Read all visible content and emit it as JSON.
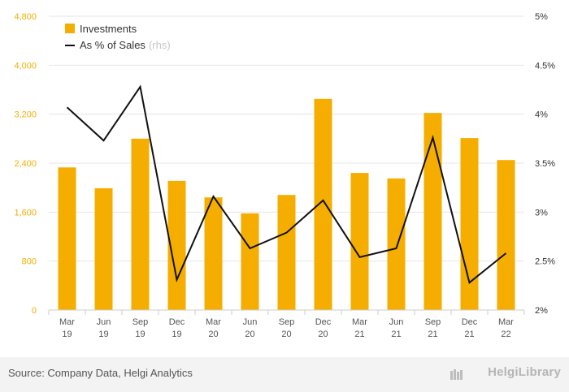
{
  "chart_data": {
    "type": "bar",
    "categories": [
      [
        "Mar",
        "19"
      ],
      [
        "Jun",
        "19"
      ],
      [
        "Sep",
        "19"
      ],
      [
        "Dec",
        "19"
      ],
      [
        "Mar",
        "20"
      ],
      [
        "Jun",
        "20"
      ],
      [
        "Sep",
        "20"
      ],
      [
        "Dec",
        "20"
      ],
      [
        "Mar",
        "21"
      ],
      [
        "Jun",
        "21"
      ],
      [
        "Sep",
        "21"
      ],
      [
        "Dec",
        "21"
      ],
      [
        "Mar",
        "22"
      ]
    ],
    "series": [
      {
        "name": "Investments",
        "type": "bar",
        "axis": "left",
        "color": "#f5ae00",
        "values": [
          2330,
          1990,
          2800,
          2110,
          1840,
          1580,
          1880,
          3450,
          2240,
          2150,
          3220,
          2810,
          2450
        ]
      },
      {
        "name": "As % of Sales",
        "name_suffix": "(rhs)",
        "type": "line",
        "axis": "right",
        "color": "#111111",
        "values": [
          4.07,
          3.73,
          4.28,
          2.31,
          3.16,
          2.63,
          2.79,
          3.12,
          2.54,
          2.63,
          3.76,
          2.28,
          2.58
        ]
      }
    ],
    "y_left": {
      "min": 0,
      "max": 4800,
      "ticks": [
        "0",
        "800",
        "1,600",
        "2,400",
        "3,200",
        "4,000",
        "4,800"
      ],
      "tick_values": [
        0,
        800,
        1600,
        2400,
        3200,
        4000,
        4800
      ],
      "color": "#f5ae00"
    },
    "y_right": {
      "min": 2,
      "max": 5,
      "ticks": [
        "2%",
        "2.5%",
        "3%",
        "3.5%",
        "4%",
        "4.5%",
        "5%"
      ],
      "tick_values": [
        2,
        2.5,
        3,
        3.5,
        4,
        4.5,
        5
      ]
    },
    "grid": true,
    "legend_position": "top-left"
  },
  "footer": {
    "source": "Source: Company Data, Helgi Analytics",
    "brand": "HelgiLibrary"
  },
  "colors": {
    "grid": "#e6e6e6",
    "axis": "#cccccc",
    "label": "#555555",
    "footer_bg": "#f3f3f3"
  }
}
